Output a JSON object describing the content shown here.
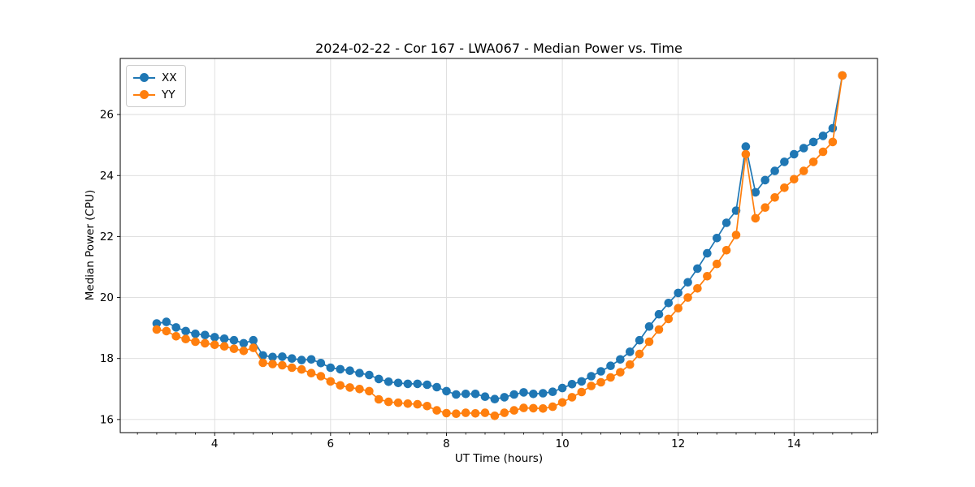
{
  "chart_data": {
    "type": "line",
    "title": "2024-02-22 - Cor 167 - LWA067 - Median Power vs. Time",
    "xlabel": "UT Time (hours)",
    "ylabel": "Median Power (CPU)",
    "xlim": [
      2.37,
      15.44
    ],
    "ylim": [
      15.57,
      27.84
    ],
    "xticks": [
      4,
      6,
      8,
      10,
      12,
      14
    ],
    "yticks": [
      16,
      18,
      20,
      22,
      24,
      26
    ],
    "x_minor_tick_step": 0.3333,
    "grid": true,
    "legend_position": "upper left",
    "marker": "circle",
    "x": [
      3.0,
      3.167,
      3.333,
      3.5,
      3.667,
      3.833,
      4.0,
      4.167,
      4.333,
      4.5,
      4.667,
      4.833,
      5.0,
      5.167,
      5.333,
      5.5,
      5.667,
      5.833,
      6.0,
      6.167,
      6.333,
      6.5,
      6.667,
      6.833,
      7.0,
      7.167,
      7.333,
      7.5,
      7.667,
      7.833,
      8.0,
      8.167,
      8.333,
      8.5,
      8.667,
      8.833,
      9.0,
      9.167,
      9.333,
      9.5,
      9.667,
      9.833,
      10.0,
      10.167,
      10.333,
      10.5,
      10.667,
      10.833,
      11.0,
      11.167,
      11.333,
      11.5,
      11.667,
      11.833,
      12.0,
      12.167,
      12.333,
      12.5,
      12.667,
      12.833,
      13.0,
      13.167,
      13.333,
      13.5,
      13.667,
      13.833,
      14.0,
      14.167,
      14.333,
      14.5,
      14.667,
      14.833
    ],
    "series": [
      {
        "name": "XX",
        "color": "#1f77b4",
        "values": [
          19.15,
          19.2,
          19.02,
          18.9,
          18.81,
          18.77,
          18.7,
          18.65,
          18.6,
          18.5,
          18.6,
          18.1,
          18.05,
          18.06,
          18.0,
          17.95,
          17.97,
          17.85,
          17.7,
          17.65,
          17.6,
          17.52,
          17.46,
          17.33,
          17.24,
          17.2,
          17.17,
          17.17,
          17.14,
          17.06,
          16.93,
          16.82,
          16.84,
          16.84,
          16.75,
          16.67,
          16.73,
          16.82,
          16.89,
          16.84,
          16.86,
          16.91,
          17.03,
          17.16,
          17.25,
          17.42,
          17.58,
          17.76,
          17.97,
          18.22,
          18.6,
          19.05,
          19.45,
          19.82,
          20.15,
          20.5,
          20.95,
          21.45,
          21.95,
          22.45,
          22.85,
          24.95,
          23.45,
          23.85,
          24.15,
          24.45,
          24.7,
          24.9,
          25.1,
          25.3,
          25.55,
          27.28
        ]
      },
      {
        "name": "YY",
        "color": "#ff7f0e",
        "values": [
          18.95,
          18.9,
          18.73,
          18.64,
          18.55,
          18.5,
          18.45,
          18.4,
          18.32,
          18.25,
          18.35,
          17.86,
          17.82,
          17.78,
          17.7,
          17.64,
          17.52,
          17.42,
          17.25,
          17.12,
          17.05,
          17.0,
          16.93,
          16.66,
          16.58,
          16.55,
          16.52,
          16.5,
          16.44,
          16.3,
          16.21,
          16.19,
          16.22,
          16.2,
          16.22,
          16.12,
          16.22,
          16.3,
          16.38,
          16.37,
          16.36,
          16.42,
          16.56,
          16.73,
          16.9,
          17.1,
          17.22,
          17.38,
          17.55,
          17.8,
          18.15,
          18.55,
          18.95,
          19.3,
          19.65,
          20.0,
          20.3,
          20.7,
          21.1,
          21.55,
          22.05,
          24.7,
          22.6,
          22.95,
          23.28,
          23.6,
          23.88,
          24.15,
          24.45,
          24.78,
          25.1,
          27.28
        ]
      }
    ]
  },
  "colors": {
    "series_xx": "#1f77b4",
    "series_yy": "#ff7f0e",
    "grid": "#dcdcdc",
    "axis": "#000000",
    "background": "#ffffff"
  }
}
